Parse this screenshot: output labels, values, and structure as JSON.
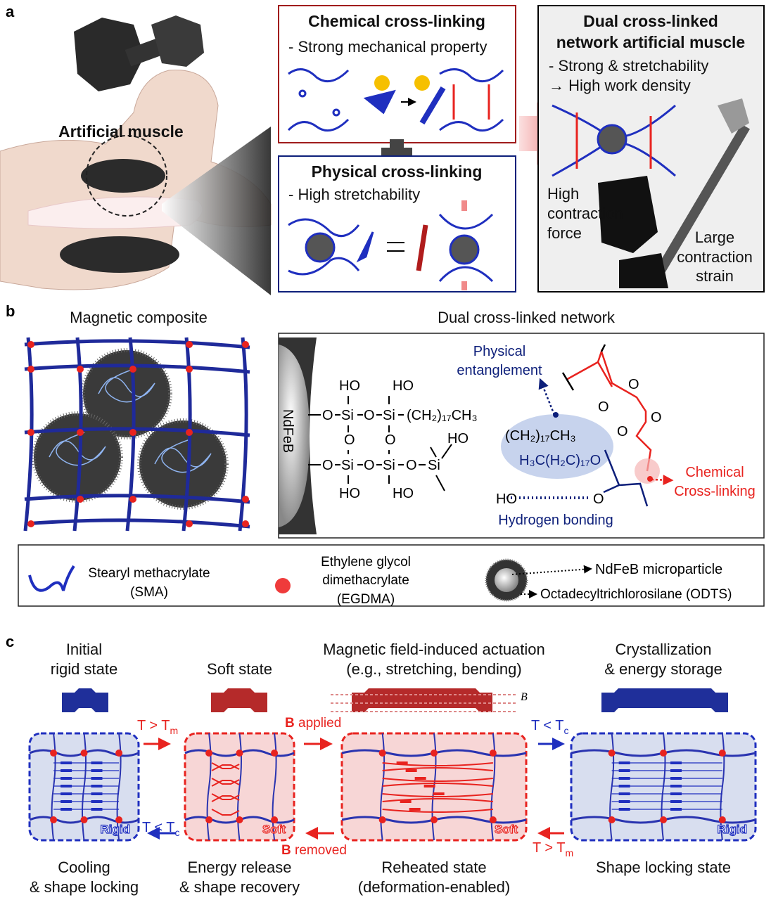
{
  "panel_a": {
    "label": "a",
    "artificial_muscle": "Artificial muscle",
    "chemical": {
      "title": "Chemical cross-linking",
      "subtitle": "- Strong mechanical property"
    },
    "physical": {
      "title": "Physical cross-linking",
      "subtitle": "- High stretchability"
    },
    "dual": {
      "title_1": "Dual cross-linked",
      "title_2": "network artificial muscle",
      "sub_1": "- Strong & stretchability",
      "sub_2": "→ High work density"
    },
    "force_label": [
      "High",
      "contraction",
      "force"
    ],
    "strain_label": [
      "Large",
      "contraction",
      "strain"
    ]
  },
  "panel_b": {
    "label": "b",
    "left_title": "Magnetic composite",
    "right_title": "Dual cross-linked network",
    "particle_label": "NdFeB",
    "formula": {
      "ho": "HO",
      "o": "O",
      "si": "Si",
      "chain": "(CH₂)₁₇CH₃",
      "ester_chain": "H₃C(H₂C)₁₇O"
    },
    "physical_entanglement": [
      "Physical",
      "entanglement"
    ],
    "chemical_crosslinking": [
      "Chemical",
      "Cross-linking"
    ],
    "hydrogen_bonding": "Hydrogen bonding"
  },
  "legend": {
    "sma": [
      "Stearyl methacrylate",
      "(SMA)"
    ],
    "egdma": [
      "Ethylene glycol",
      "dimethacrylate",
      "(EGDMA)"
    ],
    "ndfeb": "NdFeB microparticle",
    "odts": "Octadecyltrichlorosilane (ODTS)"
  },
  "panel_c": {
    "label": "c",
    "states": [
      {
        "top": [
          "Initial",
          "rigid state"
        ],
        "bottom": [
          "Cooling",
          "& shape locking"
        ],
        "tag": "Rigid",
        "mode": "rigid"
      },
      {
        "top": [
          "",
          "Soft state"
        ],
        "bottom": [
          "Energy release",
          "& shape recovery"
        ],
        "tag": "Soft",
        "mode": "soft"
      },
      {
        "top": [
          "Magnetic field-induced actuation",
          "(e.g., stretching, bending)"
        ],
        "bottom": [
          "Reheated state",
          "(deformation-enabled)"
        ],
        "tag": "Soft",
        "mode": "stretched"
      },
      {
        "top": [
          "Crystallization",
          "& energy storage"
        ],
        "bottom": [
          "Shape locking state",
          ""
        ],
        "tag": "Rigid",
        "mode": "rigid-stretched"
      }
    ],
    "field_symbol": "B",
    "arrows": {
      "heat_1": {
        "main": "T > T",
        "sub": "m"
      },
      "b_applied": {
        "bold": "B",
        "rest": " applied"
      },
      "cool_1": {
        "main": "T < T",
        "sub": "c"
      },
      "cool_back": {
        "main": "T < T",
        "sub": "c"
      },
      "b_removed": {
        "bold": "B",
        "rest": " removed"
      },
      "heat_back": {
        "main": "T > T",
        "sub": "m"
      }
    }
  },
  "colors": {
    "blue": "#1f2fbf",
    "red": "#e8231f",
    "dark_red": "#a01c1c",
    "navy": "#0d1f7a",
    "pink_fill": "#f7d6d6",
    "blue_fill": "#d8deef"
  }
}
